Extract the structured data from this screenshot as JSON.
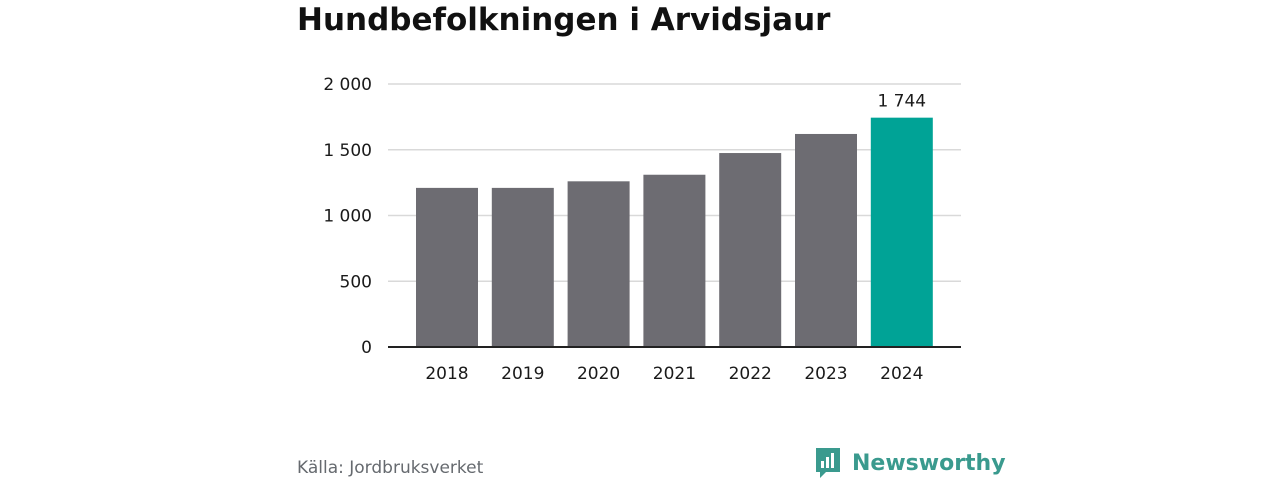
{
  "title": "Hundbefolkningen i Arvidsjaur",
  "source": "Källa: Jordbruksverket",
  "brand": {
    "name": "Newsworthy",
    "icon": "newsworthy-logo-icon",
    "color": "#3a9a8e"
  },
  "colors": {
    "bar": "#6d6c72",
    "highlight": "#00a396",
    "grid": "#d9d9d9",
    "axis": "#222222"
  },
  "chart_data": {
    "type": "bar",
    "categories": [
      "2018",
      "2019",
      "2020",
      "2021",
      "2022",
      "2023",
      "2024"
    ],
    "values": [
      1210,
      1210,
      1260,
      1310,
      1475,
      1620,
      1744
    ],
    "highlight_index": 6,
    "data_labels": [
      {
        "index": 6,
        "text": "1 744"
      }
    ],
    "ylim": [
      0,
      2000
    ],
    "yticks": [
      0,
      500,
      1000,
      1500,
      2000
    ],
    "ytick_labels": [
      "0",
      "500",
      "1 000",
      "1 500",
      "2 000"
    ],
    "grid": true,
    "xlabel": "",
    "ylabel": ""
  }
}
